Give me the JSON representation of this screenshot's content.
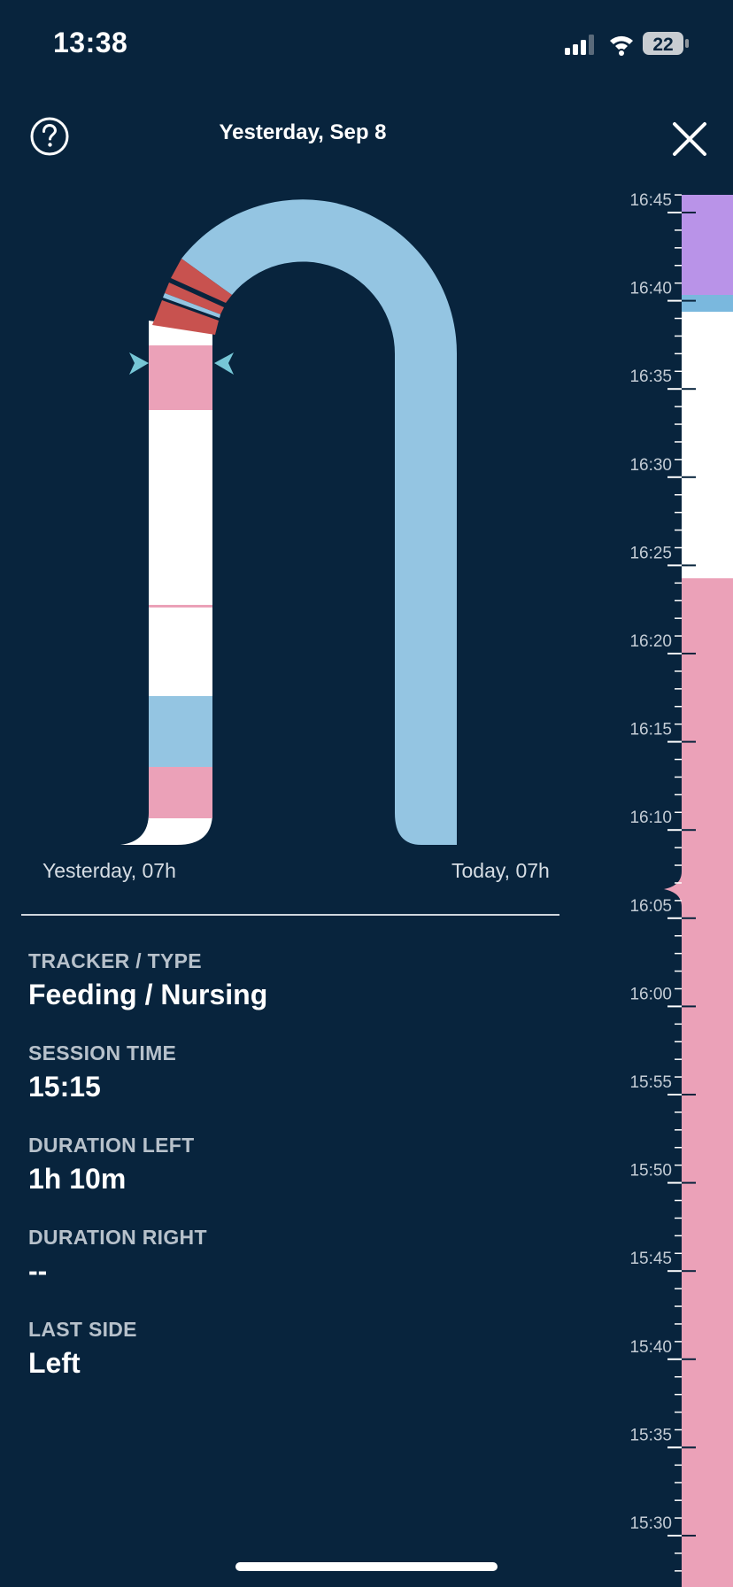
{
  "status_bar": {
    "time": "13:38",
    "battery_level": "22"
  },
  "header": {
    "title": "Yesterday, Sep 8"
  },
  "arch_labels": {
    "start": "Yesterday, 07h",
    "end": "Today, 07h"
  },
  "details": [
    {
      "label": "TRACKER / TYPE",
      "value": "Feeding / Nursing"
    },
    {
      "label": "SESSION TIME",
      "value": "15:15"
    },
    {
      "label": "DURATION LEFT",
      "value": "1h 10m"
    },
    {
      "label": "DURATION RIGHT",
      "value": "--"
    },
    {
      "label": "LAST SIDE",
      "value": "Left"
    }
  ],
  "timeline": {
    "ticks": [
      "16:45",
      "16:40",
      "16:35",
      "16:30",
      "16:25",
      "16:20",
      "16:15",
      "16:10",
      "16:05",
      "16:00",
      "15:55",
      "15:50",
      "15:45",
      "15:40",
      "15:35",
      "15:30"
    ]
  },
  "colors": {
    "background": "#08243d",
    "sleep_blue": "#94c5e2",
    "feeding_pink": "#eba1b8",
    "diaper_red": "#c8524f",
    "activity_purple": "#b993e8",
    "empty_white": "#ffffff",
    "marker_teal": "#76c6d6"
  }
}
